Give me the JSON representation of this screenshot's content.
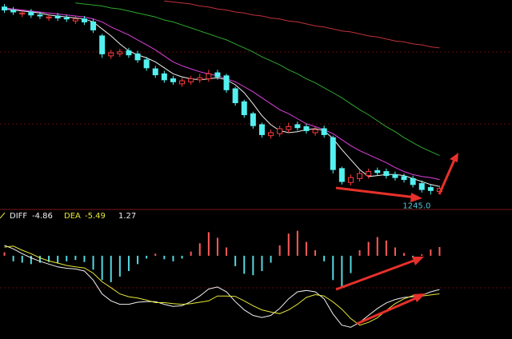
{
  "chart_data": [
    {
      "type": "candlestick",
      "categories": [
        null,
        null,
        null,
        null,
        null,
        null,
        null,
        null,
        null,
        null,
        null,
        null,
        null,
        null,
        null,
        null,
        null,
        null,
        null,
        null,
        null,
        null,
        null,
        null,
        null,
        null,
        null,
        null,
        null,
        null,
        null,
        null,
        null,
        null,
        null,
        null,
        null,
        null,
        null,
        null,
        null,
        null,
        null,
        null,
        null,
        null,
        null,
        null,
        null,
        null
      ],
      "open": [
        1433,
        1430,
        1426,
        1428,
        1425,
        1422,
        1424,
        1422,
        1419,
        1421,
        1418,
        1404,
        1384,
        1386,
        1389,
        1386,
        1380,
        1371,
        1366,
        1361,
        1356,
        1358,
        1360,
        1361,
        1367,
        1364,
        1351,
        1338,
        1326,
        1315,
        1304,
        1306,
        1310,
        1315,
        1313,
        1307,
        1311,
        1302,
        1271,
        1257,
        1261,
        1264,
        1269,
        1268,
        1265,
        1263,
        1261,
        1256,
        1252,
        1248
      ],
      "close": [
        1430,
        1428,
        1427,
        1425,
        1424,
        1423,
        1422,
        1421,
        1421,
        1418,
        1410,
        1386,
        1387,
        1388,
        1385,
        1380,
        1372,
        1365,
        1360,
        1358,
        1359,
        1361,
        1362,
        1366,
        1363,
        1350,
        1337,
        1325,
        1314,
        1305,
        1307,
        1311,
        1313,
        1312,
        1309,
        1310,
        1305,
        1270,
        1258,
        1262,
        1266,
        1268,
        1267,
        1264,
        1262,
        1260,
        1255,
        1250,
        1249,
        1251
      ],
      "high": [
        1436,
        1433,
        1430,
        1431,
        1428,
        1426,
        1427,
        1425,
        1424,
        1424,
        1421,
        1406,
        1390,
        1391,
        1392,
        1389,
        1383,
        1374,
        1369,
        1364,
        1362,
        1364,
        1366,
        1370,
        1370,
        1366,
        1353,
        1340,
        1328,
        1317,
        1310,
        1314,
        1317,
        1318,
        1316,
        1313,
        1314,
        1304,
        1273,
        1265,
        1269,
        1271,
        1272,
        1271,
        1268,
        1266,
        1264,
        1259,
        1255,
        1254
      ],
      "low": [
        1427,
        1425,
        1423,
        1422,
        1421,
        1419,
        1419,
        1418,
        1416,
        1415,
        1407,
        1382,
        1381,
        1383,
        1382,
        1377,
        1369,
        1362,
        1357,
        1355,
        1353,
        1355,
        1357,
        1358,
        1360,
        1347,
        1334,
        1322,
        1311,
        1302,
        1301,
        1303,
        1307,
        1309,
        1306,
        1304,
        1302,
        1266,
        1255,
        1254,
        1258,
        1261,
        1264,
        1261,
        1259,
        1257,
        1252,
        1247,
        1245,
        1246
      ],
      "up_color": "#ff3c3c",
      "down_color": "#54f0f0",
      "series": [
        {
          "color": "#f0f0f0",
          "values": [
            1431,
            1430,
            1429,
            1428,
            1427,
            1425,
            1424,
            1423,
            1422,
            1421,
            1418,
            1411,
            1404,
            1396,
            1389,
            1385,
            1382,
            1378,
            1372,
            1366,
            1363,
            1361,
            1360,
            1361,
            1362,
            1360,
            1355,
            1347,
            1336,
            1324,
            1315,
            1309,
            1307,
            1308,
            1310,
            1311,
            1309,
            1301,
            1290,
            1280,
            1270,
            1263,
            1264,
            1265,
            1265,
            1264,
            1261,
            1258,
            1255,
            1253
          ]
        },
        {
          "color": "#e040e0",
          "values": [
            1432,
            1431,
            1430,
            1429,
            1428,
            1427,
            1426,
            1425,
            1424,
            1423,
            1421,
            1418,
            1413,
            1409,
            1405,
            1400,
            1395,
            1390,
            1384,
            1378,
            1374,
            1371,
            1368,
            1366,
            1364,
            1361,
            1358,
            1353,
            1348,
            1342,
            1336,
            1330,
            1326,
            1321,
            1316,
            1313,
            1310,
            1306,
            1300,
            1294,
            1289,
            1285,
            1281,
            1277,
            1272,
            1268,
            1265,
            1263,
            1262,
            1260
          ]
        },
        {
          "color": "#2ea82e",
          "values": [
            null,
            null,
            null,
            null,
            null,
            null,
            null,
            null,
            1437,
            1436,
            1435,
            1434,
            1432,
            1431,
            1429,
            1427,
            1425,
            1423,
            1420,
            1418,
            1415,
            1412,
            1409,
            1406,
            1403,
            1400,
            1396,
            1392,
            1388,
            1383,
            1379,
            1375,
            1370,
            1366,
            1361,
            1357,
            1352,
            1347,
            1342,
            1336,
            1330,
            1325,
            1319,
            1313,
            1308,
            1302,
            1297,
            1292,
            1288,
            1284
          ]
        },
        {
          "color": "#c0303a",
          "values": [
            null,
            null,
            null,
            null,
            null,
            null,
            null,
            null,
            null,
            null,
            null,
            null,
            null,
            null,
            null,
            null,
            null,
            null,
            1439,
            1438,
            1437,
            1436,
            1434,
            1433,
            1431,
            1430,
            1428,
            1427,
            1425,
            1424,
            1422,
            1421,
            1419,
            1418,
            1416,
            1414,
            1413,
            1411,
            1409,
            1408,
            1406,
            1404,
            1403,
            1401,
            1399,
            1398,
            1396,
            1395,
            1393,
            1392
          ]
        }
      ],
      "annotations": [
        {
          "value": 1245,
          "label": "1245.0"
        }
      ],
      "ylim": [
        1230,
        1440
      ]
    },
    {
      "type": "macd",
      "categories": [
        null,
        null,
        null,
        null,
        null,
        null,
        null,
        null,
        null,
        null,
        null,
        null,
        null,
        null,
        null,
        null,
        null,
        null,
        null,
        null,
        null,
        null,
        null,
        null,
        null,
        null,
        null,
        null,
        null,
        null,
        null,
        null,
        null,
        null,
        null,
        null,
        null,
        null,
        null,
        null,
        null,
        null,
        null,
        null,
        null,
        null,
        null,
        null,
        null,
        null
      ],
      "up_color": "#ff5a5a",
      "down_color": "#54d8e0",
      "series": [
        {
          "values": [
            0.5,
            -0.8,
            -1.0,
            -1.2,
            -1.0,
            -0.9,
            -1.1,
            -0.8,
            -0.6,
            -0.9,
            -2.0,
            -3.5,
            -3.8,
            -3.0,
            -2.2,
            -1.2,
            -0.4,
            0.3,
            -0.5,
            -0.8,
            -0.4,
            0.6,
            1.8,
            3.4,
            2.6,
            1.2,
            -1.5,
            -2.6,
            -2.8,
            -2.2,
            -1.0,
            1.5,
            3.2,
            3.6,
            2.0,
            0.8,
            -0.8,
            -3.5,
            -4.6,
            -2.5,
            0.8,
            2.0,
            2.7,
            2.2,
            1.2,
            0.4,
            -0.3,
            0.2,
            0.9,
            1.27
          ]
        },
        {
          "name": "DIFF",
          "color": "#f0f0f0",
          "values": [
            1.5,
            1.0,
            0.3,
            -0.3,
            -0.8,
            -1.2,
            -1.6,
            -1.8,
            -1.9,
            -2.2,
            -3.5,
            -5.5,
            -6.5,
            -7.0,
            -7.0,
            -6.7,
            -6.6,
            -6.6,
            -7.0,
            -7.3,
            -7.2,
            -6.6,
            -5.8,
            -4.8,
            -4.5,
            -5.2,
            -6.6,
            -7.8,
            -8.6,
            -8.9,
            -8.6,
            -7.6,
            -6.2,
            -5.2,
            -5.0,
            -5.2,
            -6.2,
            -8.4,
            -10.0,
            -10.3,
            -9.6,
            -8.6,
            -7.6,
            -6.8,
            -6.3,
            -6.0,
            -5.9,
            -5.7,
            -5.2,
            -4.86
          ]
        },
        {
          "name": "DEA",
          "color": "#e8e83a",
          "values": [
            1.25,
            1.4,
            0.8,
            0.3,
            -0.3,
            -0.75,
            -1.05,
            -1.4,
            -1.6,
            -1.75,
            -2.5,
            -3.75,
            -4.6,
            -5.5,
            -5.9,
            -6.1,
            -6.4,
            -6.75,
            -6.75,
            -6.9,
            -7.0,
            -6.9,
            -6.7,
            -6.5,
            -5.8,
            -5.8,
            -5.85,
            -6.5,
            -7.2,
            -7.8,
            -8.1,
            -8.35,
            -7.8,
            -7.0,
            -6.0,
            -5.6,
            -5.8,
            -6.65,
            -7.7,
            -9.05,
            -10.0,
            -9.6,
            -8.95,
            -7.9,
            -6.9,
            -6.2,
            -5.75,
            -5.8,
            -5.65,
            -5.49
          ]
        }
      ],
      "ylim": [
        -12,
        4.6
      ]
    }
  ]
}
